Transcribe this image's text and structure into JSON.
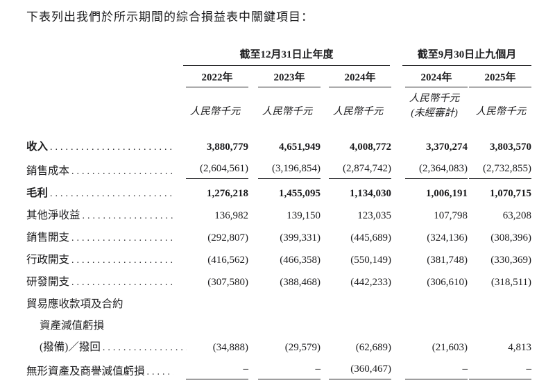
{
  "title": "下表列出我們於所示期間的綜合損益表中關鍵項目：",
  "table": {
    "leader": "......................................................................",
    "groups": [
      {
        "label": "截至12月31日止年度"
      },
      {
        "label": "截至9月30日止九個月"
      }
    ],
    "columns": [
      {
        "year": "2022年",
        "unit": "人民幣千元"
      },
      {
        "year": "2023年",
        "unit": "人民幣千元"
      },
      {
        "year": "2024年",
        "unit": "人民幣千元"
      },
      {
        "year": "2024年",
        "unit": "人民幣千元",
        "note": "(未經審計)"
      },
      {
        "year": "2025年",
        "unit": "人民幣千元"
      }
    ],
    "rows": [
      {
        "label": "收入",
        "values": [
          "3,880,779",
          "4,651,949",
          "4,008,772",
          "3,370,274",
          "3,803,570"
        ]
      },
      {
        "label": "銷售成本",
        "values": [
          "(2,604,561)",
          "(3,196,854)",
          "(2,874,742)",
          "(2,364,083)",
          "(2,732,855)"
        ]
      },
      {
        "label": "毛利",
        "values": [
          "1,276,218",
          "1,455,095",
          "1,134,030",
          "1,006,191",
          "1,070,715"
        ]
      },
      {
        "label": "其他淨收益",
        "values": [
          "136,982",
          "139,150",
          "123,035",
          "107,798",
          "63,208"
        ]
      },
      {
        "label": "銷售開支",
        "values": [
          "(292,807)",
          "(399,331)",
          "(445,689)",
          "(324,136)",
          "(308,396)"
        ]
      },
      {
        "label": "行政開支",
        "values": [
          "(416,562)",
          "(466,358)",
          "(550,149)",
          "(381,748)",
          "(330,369)"
        ]
      },
      {
        "label": "研發開支",
        "values": [
          "(307,580)",
          "(388,468)",
          "(442,233)",
          "(306,610)",
          "(318,511)"
        ]
      },
      {
        "label": "貿易應收款項及合約"
      },
      {
        "label": "資產減值虧損"
      },
      {
        "label": "(撥備)／撥回",
        "values": [
          "(34,888)",
          "(29,579)",
          "(62,689)",
          "(21,603)",
          "4,813"
        ]
      },
      {
        "label": "無形資產及商譽減值虧損",
        "values": [
          "–",
          "–",
          "(360,467)",
          "–",
          "–"
        ]
      }
    ]
  }
}
